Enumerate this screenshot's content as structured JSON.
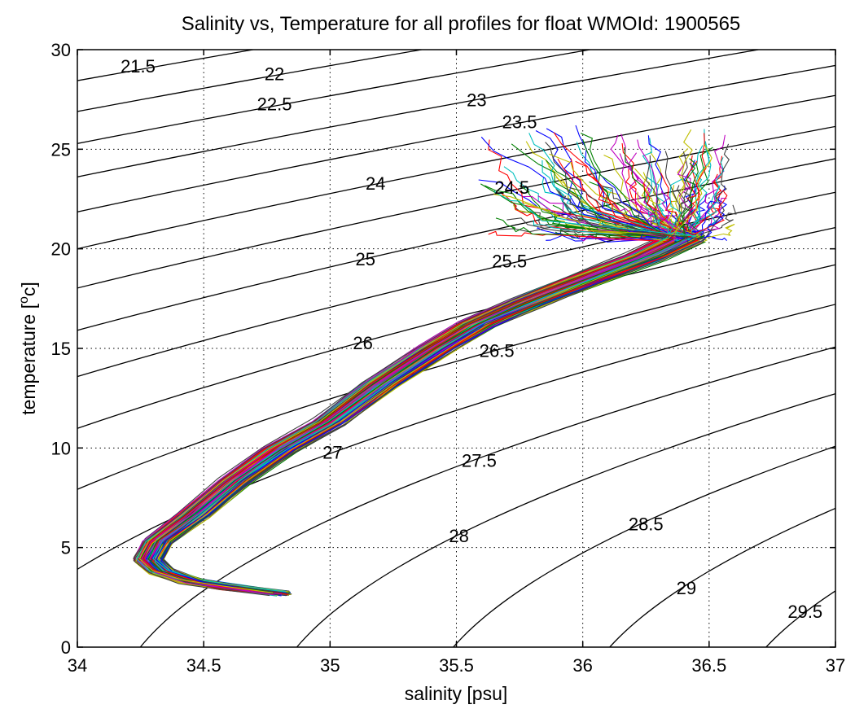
{
  "chart_data": {
    "type": "line",
    "title": "Salinity vs, Temperature for all profiles for float WMOId: 1900565",
    "xlabel": "salinity [psu]",
    "ylabel_main": "temperature [",
    "ylabel_sup": "o",
    "ylabel_end": "c]",
    "xlim": [
      34,
      37
    ],
    "ylim": [
      0,
      30
    ],
    "x_ticks": [
      34,
      34.5,
      35,
      35.5,
      36,
      36.5,
      37
    ],
    "x_tick_labels": [
      "34",
      "34.5",
      "35",
      "35.5",
      "36",
      "36.5",
      "37"
    ],
    "y_ticks": [
      0,
      5,
      10,
      15,
      20,
      25,
      30
    ],
    "y_tick_labels": [
      "0",
      "5",
      "10",
      "15",
      "20",
      "25",
      "30"
    ],
    "grid": true,
    "grid_style": "dotted",
    "density_contours": [
      {
        "sigma": 21.5,
        "label": "21.5",
        "label_at": [
          34.24,
          29.1
        ]
      },
      {
        "sigma": 22,
        "label": "22",
        "label_at": [
          34.78,
          28.7
        ]
      },
      {
        "sigma": 22.5,
        "label": "22.5",
        "label_at": [
          34.78,
          27.2
        ]
      },
      {
        "sigma": 23,
        "label": "23",
        "label_at": [
          35.58,
          27.4
        ]
      },
      {
        "sigma": 23.5,
        "label": "23.5",
        "label_at": [
          35.75,
          26.3
        ]
      },
      {
        "sigma": 24,
        "label": "24",
        "label_at": [
          35.18,
          23.2
        ]
      },
      {
        "sigma": 24.5,
        "label": "24.5",
        "label_at": [
          35.72,
          23.0
        ]
      },
      {
        "sigma": 25,
        "label": "25",
        "label_at": [
          35.14,
          19.4
        ]
      },
      {
        "sigma": 25.5,
        "label": "25.5",
        "label_at": [
          35.71,
          19.3
        ]
      },
      {
        "sigma": 26,
        "label": "26",
        "label_at": [
          35.13,
          15.2
        ]
      },
      {
        "sigma": 26.5,
        "label": "26.5",
        "label_at": [
          35.66,
          14.8
        ]
      },
      {
        "sigma": 27,
        "label": "27",
        "label_at": [
          35.01,
          9.7
        ]
      },
      {
        "sigma": 27.5,
        "label": "27.5",
        "label_at": [
          35.59,
          9.3
        ]
      },
      {
        "sigma": 28,
        "label": "28",
        "label_at": [
          35.51,
          5.5
        ]
      },
      {
        "sigma": 28.5,
        "label": "28.5",
        "label_at": [
          36.25,
          6.1
        ]
      },
      {
        "sigma": 29,
        "label": "29",
        "label_at": [
          36.41,
          2.9
        ]
      },
      {
        "sigma": 29.5,
        "label": "29.5",
        "label_at": [
          36.88,
          1.7
        ]
      }
    ],
    "profile_colors": [
      "#0000ff",
      "#008000",
      "#ff0000",
      "#00bfbf",
      "#bf00bf",
      "#bfbf00",
      "#404040"
    ],
    "profile_count": 140,
    "profile_mean_path": [
      {
        "s": 34.8,
        "t": 2.7
      },
      {
        "s": 34.6,
        "t": 3.0
      },
      {
        "s": 34.45,
        "t": 3.3
      },
      {
        "s": 34.33,
        "t": 3.8
      },
      {
        "s": 34.28,
        "t": 4.4
      },
      {
        "s": 34.32,
        "t": 5.3
      },
      {
        "s": 34.46,
        "t": 6.6
      },
      {
        "s": 34.62,
        "t": 8.3
      },
      {
        "s": 34.8,
        "t": 9.9
      },
      {
        "s": 35.0,
        "t": 11.3
      },
      {
        "s": 35.2,
        "t": 13.2
      },
      {
        "s": 35.42,
        "t": 15.0
      },
      {
        "s": 35.58,
        "t": 16.2
      },
      {
        "s": 35.78,
        "t": 17.3
      },
      {
        "s": 36.0,
        "t": 18.4
      },
      {
        "s": 36.25,
        "t": 19.6
      },
      {
        "s": 36.4,
        "t": 20.5
      }
    ],
    "profile_surface_range": {
      "s": [
        35.6,
        36.6
      ],
      "t": [
        20.5,
        26.3
      ]
    }
  }
}
